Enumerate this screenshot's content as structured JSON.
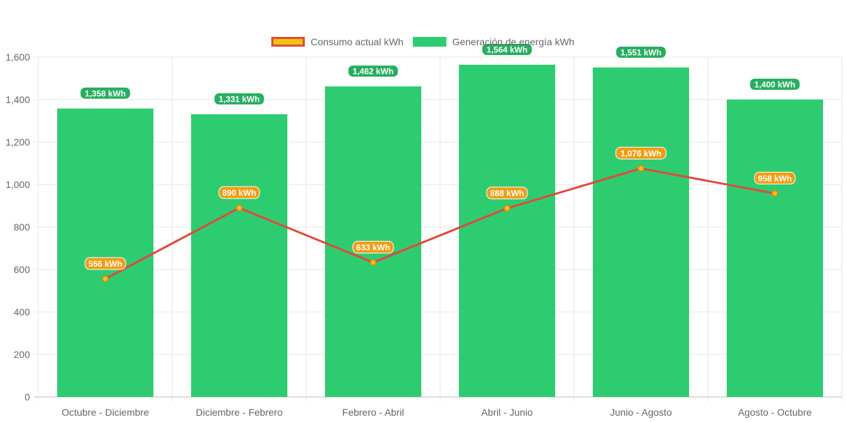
{
  "chart_data": {
    "type": "bar",
    "categories": [
      "Octubre - Diciembre",
      "Diciembre - Febrero",
      "Febrero - Abril",
      "Abril - Junio",
      "Junio - Agosto",
      "Agosto - Octubre"
    ],
    "series": [
      {
        "name": "Generación de energía kWh",
        "type": "bar",
        "values": [
          1358,
          1331,
          1462,
          1564,
          1551,
          1400
        ],
        "labels": [
          "1,358 kWh",
          "1,331 kWh",
          "1,462 kWh",
          "1,564 kWh",
          "1,551 kWh",
          "1,400 kWh"
        ],
        "color": "#2ecc71",
        "label_color": "#27ae60"
      },
      {
        "name": "Consumo actual kWh",
        "type": "line",
        "values": [
          556,
          890,
          633,
          888,
          1076,
          958
        ],
        "labels": [
          "556 kWh",
          "890 kWh",
          "633 kWh",
          "888 kWh",
          "1,076 kWh",
          "958 kWh"
        ],
        "color": "#e04a3b",
        "fill_color": "#f1c40f",
        "label_color": "#f39c12"
      }
    ],
    "y_ticks": [
      "0",
      "200",
      "400",
      "600",
      "800",
      "1,000",
      "1,200",
      "1,400",
      "1,600"
    ],
    "ylim": [
      0,
      1600
    ],
    "grid": true,
    "legend_position": "top"
  },
  "legend": {
    "line_label": "Consumo actual kWh",
    "bar_label": "Generación de energía kWh"
  }
}
